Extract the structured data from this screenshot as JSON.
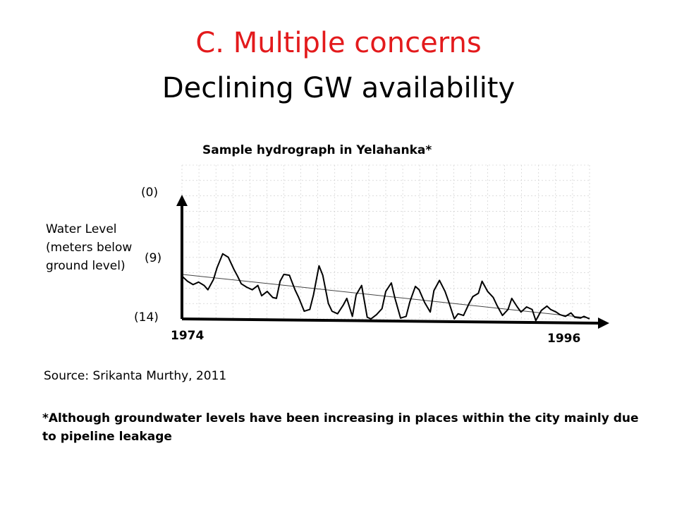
{
  "slide": {
    "title_line1": "C. Multiple concerns",
    "title_line2": "Declining GW availability",
    "source": "Source: Srikanta Murthy, 2011",
    "footnote": "*Although groundwater levels have been increasing in places within the city mainly due to pipeline leakage"
  },
  "colors": {
    "title_accent": "#e31a1c",
    "ink": "#000000",
    "grid": "#c8c8c8",
    "trend": "#444444"
  },
  "chart_data": {
    "type": "line",
    "title": "Sample hydrograph in Yelahanka*",
    "ylabel": "Water Level (meters below ground level)",
    "xlabel": "",
    "x_range": [
      1974,
      1996
    ],
    "x_ticks": [
      "1974",
      "1996"
    ],
    "y_ticks": [
      "(0)",
      "(9)",
      "(14)"
    ],
    "y_tick_values": [
      0,
      9,
      14
    ],
    "y_inverted": true,
    "grid": true,
    "series": [
      {
        "x": [
          1974.0,
          1974.3,
          1974.6,
          1974.9,
          1975.2,
          1975.4,
          1975.7,
          1975.9,
          1976.2,
          1976.5,
          1976.8,
          1977.0,
          1977.2,
          1977.5,
          1977.8,
          1978.1,
          1978.3,
          1978.6,
          1978.9,
          1979.1,
          1979.3,
          1979.5,
          1979.8,
          1980.1,
          1980.3,
          1980.6,
          1980.9,
          1981.1,
          1981.4,
          1981.6,
          1981.9,
          1982.1,
          1982.4,
          1982.7,
          1982.9,
          1983.2,
          1983.4,
          1983.7,
          1984.0,
          1984.2,
          1984.5,
          1984.8,
          1985.0,
          1985.3,
          1985.5,
          1985.8,
          1986.1,
          1986.3,
          1986.6,
          1986.8,
          1987.1,
          1987.4,
          1987.6,
          1987.9,
          1988.2,
          1988.4,
          1988.7,
          1988.9,
          1989.2,
          1989.5,
          1989.7,
          1990.0,
          1990.2,
          1990.5,
          1990.8,
          1991.0,
          1991.3,
          1991.6,
          1991.8,
          1992.1,
          1992.3,
          1992.6,
          1992.9,
          1993.1,
          1993.4,
          1993.7,
          1993.9,
          1994.2,
          1994.4,
          1994.7,
          1995.0,
          1995.2,
          1995.5,
          1995.7,
          1996.0
        ],
        "y": [
          9.0,
          9.6,
          10.0,
          9.7,
          10.1,
          10.6,
          9.4,
          8.0,
          6.4,
          6.8,
          8.2,
          9.0,
          9.9,
          10.3,
          10.6,
          10.1,
          11.3,
          10.8,
          11.5,
          11.6,
          9.6,
          8.8,
          8.9,
          10.6,
          11.5,
          13.1,
          12.9,
          11.2,
          7.8,
          8.9,
          12.2,
          13.1,
          13.4,
          12.4,
          11.6,
          13.7,
          11.2,
          10.1,
          13.8,
          14.0,
          13.5,
          12.8,
          10.8,
          9.8,
          11.6,
          13.9,
          13.7,
          12.0,
          10.2,
          10.6,
          12.1,
          13.2,
          10.7,
          9.5,
          10.8,
          12.0,
          14.0,
          13.4,
          13.6,
          12.2,
          11.4,
          11.0,
          9.6,
          10.8,
          11.5,
          12.4,
          13.6,
          12.9,
          11.6,
          12.6,
          13.2,
          12.6,
          12.9,
          14.2,
          13.0,
          12.5,
          12.9,
          13.2,
          13.5,
          13.7,
          13.3,
          13.8,
          13.9,
          13.7,
          14.0
        ]
      }
    ],
    "trend": {
      "y_start": 8.8,
      "y_end": 13.9
    }
  }
}
